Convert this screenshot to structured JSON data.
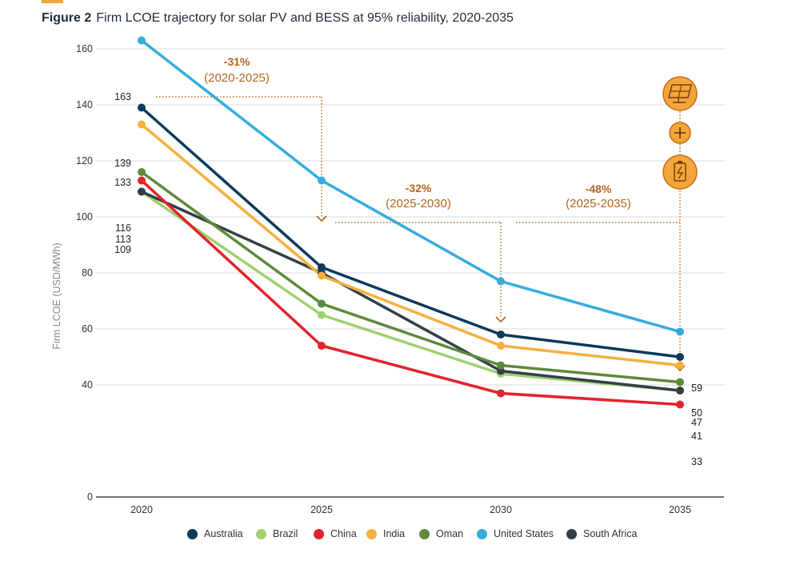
{
  "figure": {
    "label": "Figure 2",
    "title": "Firm LCOE trajectory for solar PV and BESS at 95% reliability, 2020-2035"
  },
  "annotations": [
    {
      "pct": "-31%",
      "period": "(2020-2025)"
    },
    {
      "pct": "-32%",
      "period": "(2025-2030)"
    },
    {
      "pct": "-48%",
      "period": "(2025-2035)"
    }
  ],
  "icons": [
    "solar-panel-icon",
    "plus-icon",
    "battery-icon"
  ],
  "colors": {
    "annotation": "#b5651d",
    "icon_fill": "#f2a63a",
    "icon_stroke": "#c96a12"
  },
  "chart_data": {
    "type": "line",
    "title": "Firm LCOE trajectory for solar PV and BESS at 95% reliability, 2020-2035",
    "xlabel": "",
    "ylabel": "Firm LCOE (USD/MWh)",
    "x": [
      "2020",
      "2025",
      "2030",
      "2035"
    ],
    "ylim": [
      0,
      170
    ],
    "yticks": [
      "0",
      "40",
      "60",
      "80",
      "100",
      "120",
      "140",
      "160"
    ],
    "grid": true,
    "legend_position": "bottom",
    "start_labels": [
      "163",
      "139",
      "133",
      "116",
      "113",
      "109"
    ],
    "end_labels": [
      "59",
      "50",
      "47",
      "41",
      "33"
    ],
    "series": [
      {
        "name": "Australia",
        "color": "#0b3a5a",
        "values": [
          139,
          82,
          58,
          50
        ]
      },
      {
        "name": "Brazil",
        "color": "#9fd06f",
        "values": [
          109,
          65,
          44,
          38
        ]
      },
      {
        "name": "China",
        "color": "#e3232b",
        "values": [
          113,
          54,
          37,
          33
        ]
      },
      {
        "name": "India",
        "color": "#f4b13e",
        "values": [
          133,
          79,
          54,
          47
        ]
      },
      {
        "name": "Oman",
        "color": "#5e8a3c",
        "values": [
          116,
          69,
          47,
          41
        ]
      },
      {
        "name": "United States",
        "color": "#35acdd",
        "values": [
          163,
          113,
          77,
          59
        ]
      },
      {
        "name": "South Africa",
        "color": "#333f47",
        "values": [
          109,
          80,
          45,
          38
        ]
      }
    ]
  }
}
